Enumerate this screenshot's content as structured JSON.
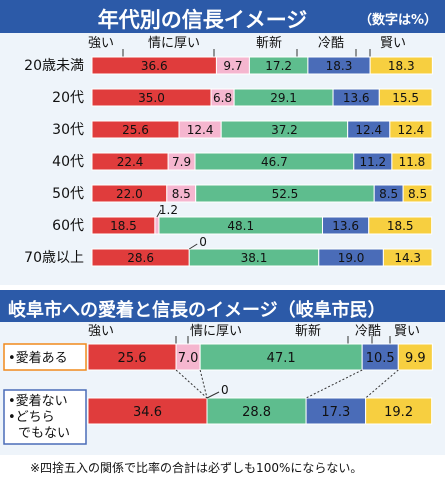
{
  "chart_data": [
    {
      "type": "bar",
      "title": "年代別の信長イメージ",
      "unit_note": "（数字は%）",
      "legend": [
        "強い",
        "情に厚い",
        "斬新",
        "冷酷",
        "賢い"
      ],
      "colors": [
        "#e03c3c",
        "#f5b6cf",
        "#5ebd8e",
        "#4a6cb8",
        "#f7cf40"
      ],
      "categories": [
        "20歳未満",
        "20代",
        "30代",
        "40代",
        "50代",
        "60代",
        "70歳以上"
      ],
      "series": [
        {
          "name": "強い",
          "values": [
            36.6,
            35.0,
            25.6,
            22.4,
            22.0,
            18.5,
            28.6
          ]
        },
        {
          "name": "情に厚い",
          "values": [
            9.7,
            6.8,
            12.4,
            7.9,
            8.5,
            1.2,
            0
          ]
        },
        {
          "name": "斬新",
          "values": [
            17.2,
            29.1,
            37.2,
            46.7,
            52.5,
            48.1,
            38.1
          ]
        },
        {
          "name": "冷酷",
          "values": [
            18.3,
            13.6,
            12.4,
            11.2,
            8.5,
            13.6,
            19.0
          ]
        },
        {
          "name": "賢い",
          "values": [
            18.3,
            15.5,
            12.4,
            11.8,
            8.5,
            18.5,
            14.3
          ]
        }
      ]
    },
    {
      "type": "bar",
      "title": "岐阜市への愛着と信長のイメージ（岐阜市民）",
      "legend": [
        "強い",
        "情に厚い",
        "斬新",
        "冷酷",
        "賢い"
      ],
      "colors": [
        "#e03c3c",
        "#f5b6cf",
        "#5ebd8e",
        "#4a6cb8",
        "#f7cf40"
      ],
      "categories": [
        "•愛着ある",
        "•愛着ない\n•どちらでもない"
      ],
      "series": [
        {
          "name": "強い",
          "values": [
            25.6,
            34.6
          ]
        },
        {
          "name": "情に厚い",
          "values": [
            7.0,
            0
          ]
        },
        {
          "name": "斬新",
          "values": [
            47.1,
            28.8
          ]
        },
        {
          "name": "冷酷",
          "values": [
            10.5,
            17.3
          ]
        },
        {
          "name": "賢い",
          "values": [
            9.9,
            19.2
          ]
        }
      ]
    }
  ],
  "footnote": "※四捨五入の関係で比率の合計は必ずしも100%にならない。"
}
